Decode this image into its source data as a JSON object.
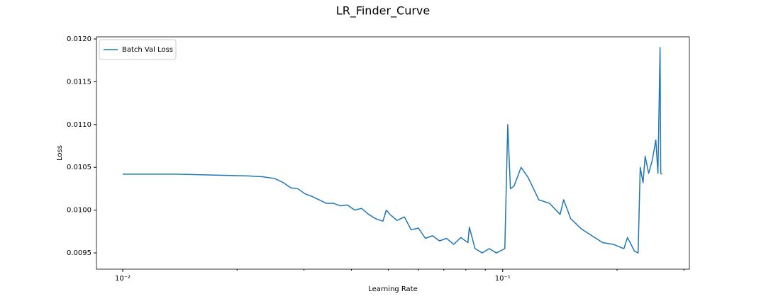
{
  "chart_data": {
    "type": "line",
    "title": "LR_Finder_Curve",
    "x_label": "Learning Rate",
    "y_label": "Loss",
    "x_scale": "log",
    "xlim": [
      0.00853,
      0.31
    ],
    "ylim": [
      0.00931,
      0.012025
    ],
    "xticks": [
      {
        "value": 0.01,
        "label": "10⁻²"
      },
      {
        "value": 0.1,
        "label": "10⁻¹"
      }
    ],
    "xminorticks": [
      0.02,
      0.03,
      0.04,
      0.05,
      0.06,
      0.07,
      0.08,
      0.09,
      0.2,
      0.3
    ],
    "yticks": [
      0.0095,
      {
        "value": 0.01,
        "label": "0.0100"
      },
      0.0105,
      {
        "value": 0.011,
        "label": "0.0110"
      },
      0.0115,
      {
        "value": 0.012,
        "label": "0.0120"
      }
    ],
    "legend": "upper left",
    "grid": false,
    "x": [
      0.01,
      0.01123,
      0.01392,
      0.01725,
      0.0214,
      0.0233,
      0.0251,
      0.0265,
      0.0277,
      0.0289,
      0.0302,
      0.0315,
      0.0329,
      0.0343,
      0.0358,
      0.0374,
      0.039,
      0.0408,
      0.0425,
      0.0444,
      0.0463,
      0.0484,
      0.0494,
      0.0505,
      0.0527,
      0.0551,
      0.0562,
      0.0574,
      0.06,
      0.0626,
      0.0654,
      0.0682,
      0.0712,
      0.0743,
      0.0776,
      0.081,
      0.0817,
      0.0846,
      0.0883,
      0.0922,
      0.0962,
      0.1013,
      0.1031,
      0.1048,
      0.1071,
      0.1118,
      0.1167,
      0.1245,
      0.1328,
      0.1416,
      0.1447,
      0.151,
      0.1611,
      0.1718,
      0.1833,
      0.1954,
      0.2085,
      0.213,
      0.2223,
      0.2272,
      0.2301,
      0.2341,
      0.2371,
      0.2422,
      0.2475,
      0.2529,
      0.2562,
      0.2595,
      0.2606,
      0.2629
    ],
    "series": [
      {
        "name": "Batch Val Loss",
        "color": "#1f77b4",
        "values": [
          0.01042,
          0.01042,
          0.01042,
          0.01041,
          0.0104,
          0.01039,
          0.01037,
          0.01032,
          0.01026,
          0.01025,
          0.01019,
          0.01016,
          0.01012,
          0.01008,
          0.01008,
          0.01005,
          0.01006,
          0.01,
          0.01002,
          0.00995,
          0.0099,
          0.00987,
          0.01,
          0.00995,
          0.00988,
          0.00992,
          0.00985,
          0.00977,
          0.00979,
          0.00967,
          0.0097,
          0.00964,
          0.00967,
          0.0096,
          0.00968,
          0.00962,
          0.0098,
          0.00955,
          0.0095,
          0.00955,
          0.0095,
          0.00955,
          0.011,
          0.01025,
          0.01028,
          0.0105,
          0.01038,
          0.01012,
          0.01008,
          0.00995,
          0.01012,
          0.0099,
          0.00978,
          0.0097,
          0.00962,
          0.0096,
          0.00955,
          0.00968,
          0.00952,
          0.0095,
          0.0105,
          0.01032,
          0.01063,
          0.01043,
          0.01058,
          0.01082,
          0.01043,
          0.0119,
          0.01043,
          0.01042
        ]
      }
    ]
  }
}
